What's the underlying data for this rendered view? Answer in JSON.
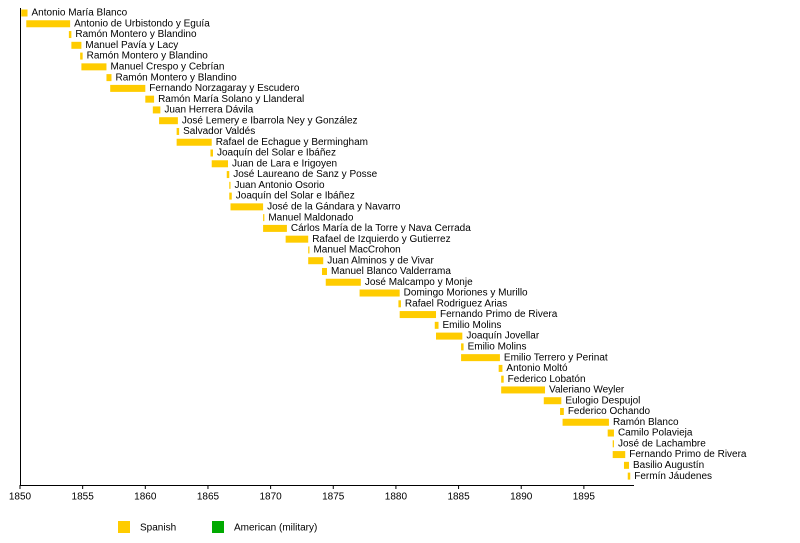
{
  "chart_data": {
    "type": "timeline",
    "xlim": [
      1850,
      1899
    ],
    "xticks": [
      1850,
      1855,
      1860,
      1865,
      1870,
      1875,
      1880,
      1885,
      1890,
      1895
    ],
    "series": [
      {
        "name": "Spanish",
        "color": "#ffcc00"
      },
      {
        "name": "American (military)",
        "color": "#00aa00"
      }
    ],
    "bars": [
      {
        "label": "Antonio María Blanco",
        "start": 1850.1,
        "end": 1850.6
      },
      {
        "label": "Antonio de Urbistondo y Eguía",
        "start": 1850.5,
        "end": 1854.0
      },
      {
        "label": "Ramón Montero y Blandino",
        "start": 1853.9,
        "end": 1854.1
      },
      {
        "label": "Manuel Pavía y Lacy",
        "start": 1854.1,
        "end": 1854.9
      },
      {
        "label": "Ramón Montero y Blandino",
        "start": 1854.8,
        "end": 1855.0
      },
      {
        "label": "Manuel Crespo y Cebrían",
        "start": 1854.9,
        "end": 1856.9
      },
      {
        "label": "Ramón Montero y Blandino",
        "start": 1856.9,
        "end": 1857.3
      },
      {
        "label": "Fernando Norzagaray y Escudero",
        "start": 1857.2,
        "end": 1860.0
      },
      {
        "label": "Ramón María Solano y Llanderal",
        "start": 1860.0,
        "end": 1860.7
      },
      {
        "label": "Juan Herrera Dávila",
        "start": 1860.6,
        "end": 1861.2
      },
      {
        "label": "José Lemery e Ibarrola Ney y González",
        "start": 1861.1,
        "end": 1862.6
      },
      {
        "label": "Salvador Valdés",
        "start": 1862.5,
        "end": 1862.7
      },
      {
        "label": "Rafael de Echague y Bermingham",
        "start": 1862.5,
        "end": 1865.3
      },
      {
        "label": "Joaquín del Solar e Ibáñez",
        "start": 1865.2,
        "end": 1865.4
      },
      {
        "label": "Juan de Lara e Irigoyen",
        "start": 1865.3,
        "end": 1866.6
      },
      {
        "label": "José Laureano de Sanz y Posse",
        "start": 1866.5,
        "end": 1866.7
      },
      {
        "label": "Juan Antonio Osorio",
        "start": 1866.7,
        "end": 1866.8
      },
      {
        "label": "Joaquín del Solar e Ibáñez",
        "start": 1866.7,
        "end": 1866.9
      },
      {
        "label": "José de la Gándara y Navarro",
        "start": 1866.8,
        "end": 1869.4
      },
      {
        "label": "Manuel Maldonado",
        "start": 1869.4,
        "end": 1869.5
      },
      {
        "label": "Cárlos María de la Torre y Nava Cerrada",
        "start": 1869.4,
        "end": 1871.3
      },
      {
        "label": "Rafael de Izquierdo y Gutierrez",
        "start": 1871.2,
        "end": 1873.0
      },
      {
        "label": "Manuel MacCrohon",
        "start": 1873.0,
        "end": 1873.1
      },
      {
        "label": "Juan Alminos y de Vivar",
        "start": 1873.0,
        "end": 1874.2
      },
      {
        "label": "Manuel Blanco Valderrama",
        "start": 1874.1,
        "end": 1874.5
      },
      {
        "label": "José Malcampo y Monje",
        "start": 1874.4,
        "end": 1877.2
      },
      {
        "label": "Domingo Moriones y Murillo",
        "start": 1877.1,
        "end": 1880.3
      },
      {
        "label": "Rafael Rodriguez Arias",
        "start": 1880.2,
        "end": 1880.4
      },
      {
        "label": "Fernando Primo de Rivera",
        "start": 1880.3,
        "end": 1883.2
      },
      {
        "label": "Emilio Molins",
        "start": 1883.1,
        "end": 1883.4
      },
      {
        "label": "Joaquín Jovellar",
        "start": 1883.2,
        "end": 1885.3
      },
      {
        "label": "Emilio Molins",
        "start": 1885.2,
        "end": 1885.4
      },
      {
        "label": "Emilio Terrero y Perinat",
        "start": 1885.2,
        "end": 1888.3
      },
      {
        "label": "Antonio Moltó",
        "start": 1888.2,
        "end": 1888.5
      },
      {
        "label": "Federico Lobatón",
        "start": 1888.4,
        "end": 1888.6
      },
      {
        "label": "Valeriano Weyler",
        "start": 1888.4,
        "end": 1891.9
      },
      {
        "label": "Eulogio Despujol",
        "start": 1891.8,
        "end": 1893.2
      },
      {
        "label": "Federico Ochando",
        "start": 1893.1,
        "end": 1893.4
      },
      {
        "label": "Ramón Blanco",
        "start": 1893.3,
        "end": 1897.0
      },
      {
        "label": "Camilo Polavieja",
        "start": 1896.9,
        "end": 1897.4
      },
      {
        "label": "José de Lachambre",
        "start": 1897.3,
        "end": 1897.4
      },
      {
        "label": "Fernando Primo de Rivera",
        "start": 1897.3,
        "end": 1898.3
      },
      {
        "label": "Basilio Augustín",
        "start": 1898.2,
        "end": 1898.6
      },
      {
        "label": "Fermín Jáudenes",
        "start": 1898.5,
        "end": 1898.7
      }
    ]
  }
}
